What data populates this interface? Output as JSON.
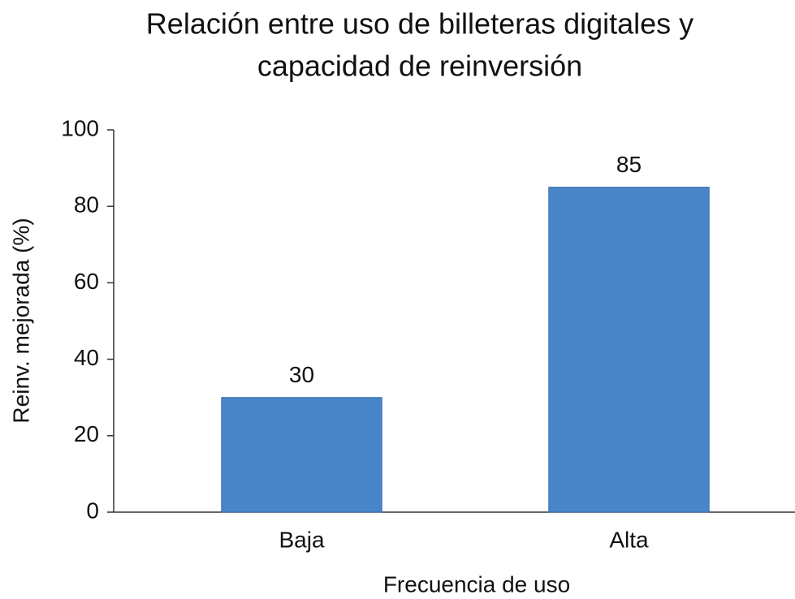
{
  "chart_data": {
    "type": "bar",
    "title": [
      "Relación entre uso de billeteras digitales y",
      "capacidad de reinversión"
    ],
    "x_label": "Frecuencia de uso",
    "y_label": "Reinv. mejorada (%)",
    "categories": [
      "Baja",
      "Alta"
    ],
    "values": [
      30,
      85
    ],
    "color": "#4a84c9",
    "ylim": [
      0,
      100
    ],
    "yticks": [
      0,
      20,
      40,
      60,
      80,
      100
    ],
    "grid": false
  }
}
